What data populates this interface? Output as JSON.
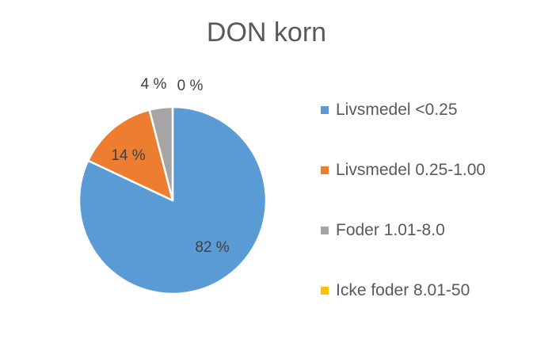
{
  "chart_data": {
    "type": "pie",
    "title": "DON korn",
    "categories": [
      "Livsmedel <0.25",
      "Livsmedel 0.25-1.00",
      "Foder 1.01-8.0",
      "Icke foder 8.01-50"
    ],
    "values": [
      82,
      14,
      4,
      0
    ],
    "data_labels": [
      "82 %",
      "14 %",
      "4 %",
      "0 %"
    ],
    "colors": [
      "#5B9BD5",
      "#ED7D31",
      "#A5A5A5",
      "#FFC000"
    ],
    "legend_position": "right"
  }
}
